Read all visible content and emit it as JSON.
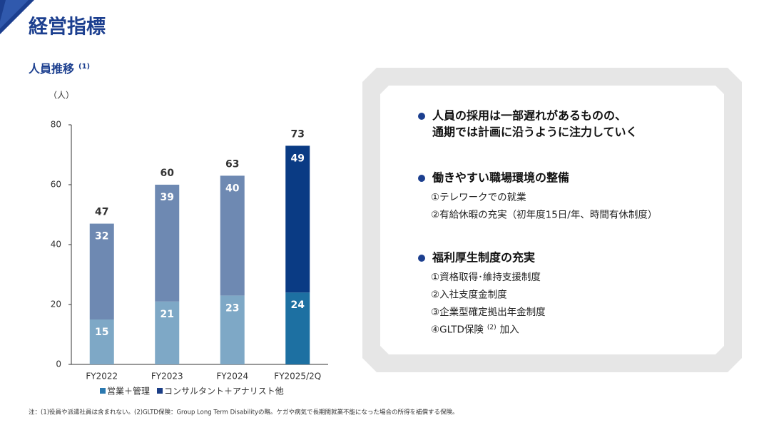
{
  "header": {
    "title": "経営指標"
  },
  "chart_data": {
    "type": "stacked_bar",
    "title": "人員推移",
    "title_note": "(1)",
    "y_unit": "（人）",
    "categories": [
      "FY2022",
      "FY2023",
      "FY2024",
      "FY2025/2Q"
    ],
    "series": [
      {
        "name": "営業＋管理",
        "color": "#2b79b0",
        "point_colors": [
          "#7ea8c6",
          "#7ea8c6",
          "#7ea8c6",
          "#1d70a2"
        ],
        "values": [
          15,
          21,
          23,
          24
        ]
      },
      {
        "name": "コンサルタント＋アナリスト他",
        "color": "#1b3e86",
        "point_colors": [
          "#6e89b2",
          "#6e89b2",
          "#6e89b2",
          "#0a3b84"
        ],
        "values": [
          32,
          39,
          40,
          49
        ]
      }
    ],
    "totals": [
      47,
      60,
      63,
      73
    ],
    "ylim": [
      0,
      80
    ],
    "yticks": [
      0,
      20,
      40,
      60,
      80
    ]
  },
  "points": [
    {
      "heading": [
        "人員の採用は一部遅れがあるものの、",
        "通期では計画に沿うように注力していく"
      ],
      "items": []
    },
    {
      "heading": [
        "働きやすい職場環境の整備"
      ],
      "items": [
        {
          "text": "①テレワークでの就業"
        },
        {
          "text": "②有給休暇の充実（初年度15日/年、時間有休制度）"
        }
      ]
    },
    {
      "heading": [
        "福利厚生制度の充実"
      ],
      "items": [
        {
          "text": "①資格取得･維持支援制度"
        },
        {
          "text": "②入社支度金制度"
        },
        {
          "text": "③企業型確定拠出年金制度"
        },
        {
          "text": "④GLTD保険",
          "note": "(2)",
          "after": "加入"
        }
      ]
    }
  ],
  "footnote": "注：(1)役員や派遣社員は含まれない。(2)GLTD保険：Group Long Term Disabilityの略。ケガや病気で長期間就業不能になった場合の所得を補償する保険。"
}
